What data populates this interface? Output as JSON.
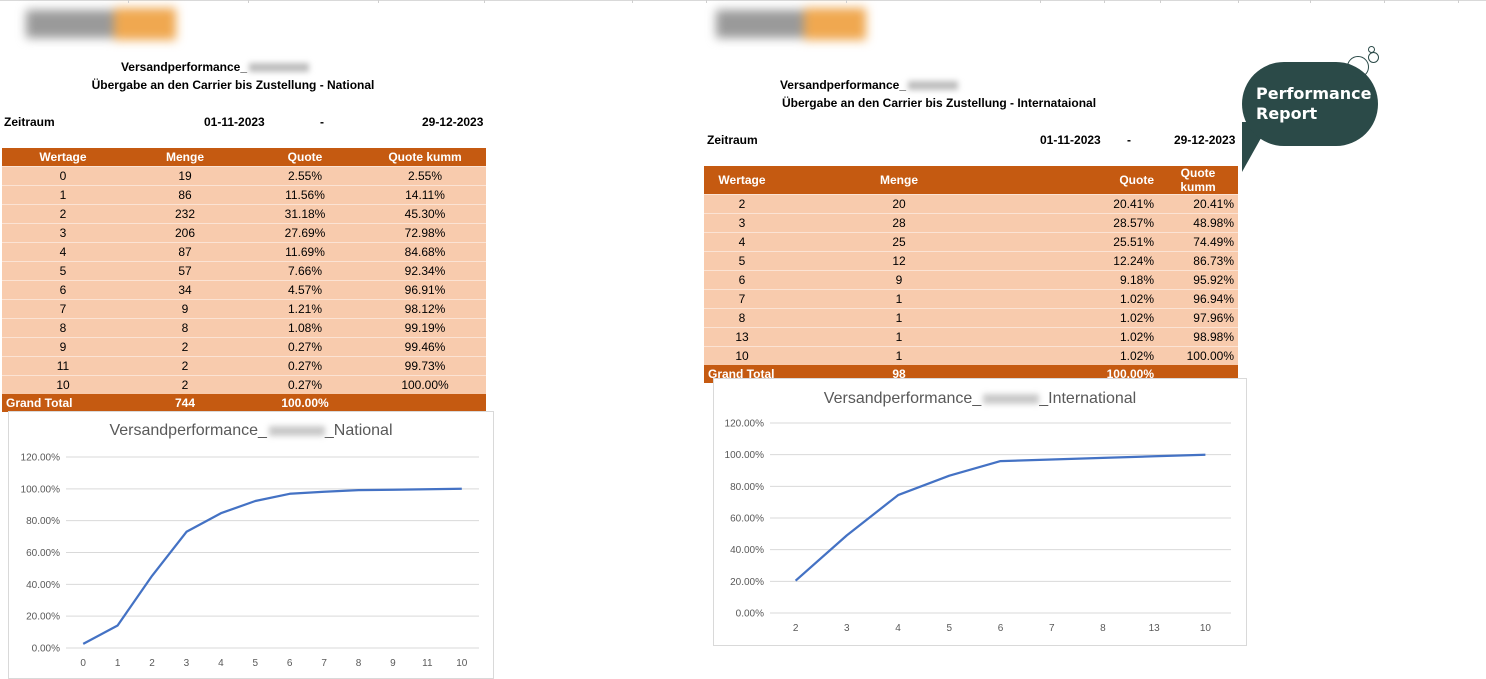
{
  "national": {
    "title": "Versandperformance_",
    "subtitle": "Übergabe an den Carrier bis Zustellung - National",
    "period_label": "Zeitraum",
    "period_from": "01-11-2023",
    "period_sep": "-",
    "period_to": "29-12-2023",
    "headers": [
      "Wertage",
      "Menge",
      "Quote",
      "Quote kumm"
    ],
    "rows": [
      [
        "0",
        "19",
        "2.55%",
        "2.55%"
      ],
      [
        "1",
        "86",
        "11.56%",
        "14.11%"
      ],
      [
        "2",
        "232",
        "31.18%",
        "45.30%"
      ],
      [
        "3",
        "206",
        "27.69%",
        "72.98%"
      ],
      [
        "4",
        "87",
        "11.69%",
        "84.68%"
      ],
      [
        "5",
        "57",
        "7.66%",
        "92.34%"
      ],
      [
        "6",
        "34",
        "4.57%",
        "96.91%"
      ],
      [
        "7",
        "9",
        "1.21%",
        "98.12%"
      ],
      [
        "8",
        "8",
        "1.08%",
        "99.19%"
      ],
      [
        "9",
        "2",
        "0.27%",
        "99.46%"
      ],
      [
        "11",
        "2",
        "0.27%",
        "99.73%"
      ],
      [
        "10",
        "2",
        "0.27%",
        "100.00%"
      ]
    ],
    "total": [
      "Grand Total",
      "744",
      "100.00%",
      ""
    ],
    "chart_title_prefix": "Versandperformance_",
    "chart_title_suffix": "_National"
  },
  "international": {
    "title": "Versandperformance_",
    "subtitle": "Übergabe an den Carrier bis Zustellung - Internataional",
    "period_label": "Zeitraum",
    "period_from": "01-11-2023",
    "period_sep": "-",
    "period_to": "29-12-2023",
    "headers": [
      "Wertage",
      "Menge",
      "Quote",
      "Quote kumm"
    ],
    "rows": [
      [
        "2",
        "20",
        "20.41%",
        "20.41%"
      ],
      [
        "3",
        "28",
        "28.57%",
        "48.98%"
      ],
      [
        "4",
        "25",
        "25.51%",
        "74.49%"
      ],
      [
        "5",
        "12",
        "12.24%",
        "86.73%"
      ],
      [
        "6",
        "9",
        "9.18%",
        "95.92%"
      ],
      [
        "7",
        "1",
        "1.02%",
        "96.94%"
      ],
      [
        "8",
        "1",
        "1.02%",
        "97.96%"
      ],
      [
        "13",
        "1",
        "1.02%",
        "98.98%"
      ],
      [
        "10",
        "1",
        "1.02%",
        "100.00%"
      ]
    ],
    "total": [
      "Grand Total",
      "98",
      "100.00%",
      ""
    ],
    "chart_title_prefix": "Versandperformance_",
    "chart_title_suffix": "_International"
  },
  "badge": {
    "line1": "Performance",
    "line2": "Report"
  },
  "colors": {
    "header": "#c55a11",
    "row": "#f8cbad",
    "line": "#4472c4",
    "badge": "#2b4a48"
  },
  "chart_data": [
    {
      "type": "line",
      "x": [
        "0",
        "1",
        "2",
        "3",
        "4",
        "5",
        "6",
        "7",
        "8",
        "9",
        "11",
        "10"
      ],
      "series": [
        {
          "values": [
            2.55,
            14.11,
            45.3,
            72.98,
            84.68,
            92.34,
            96.91,
            98.12,
            99.19,
            99.46,
            99.73,
            100.0
          ]
        }
      ],
      "yticks": [
        "0.00%",
        "20.00%",
        "40.00%",
        "60.00%",
        "80.00%",
        "100.00%",
        "120.00%"
      ],
      "ylim": [
        0,
        120
      ],
      "grid": true
    },
    {
      "type": "line",
      "x": [
        "2",
        "3",
        "4",
        "5",
        "6",
        "7",
        "8",
        "13",
        "10"
      ],
      "series": [
        {
          "values": [
            20.41,
            48.98,
            74.49,
            86.73,
            95.92,
            96.94,
            97.96,
            98.98,
            100.0
          ]
        }
      ],
      "yticks": [
        "0.00%",
        "20.00%",
        "40.00%",
        "60.00%",
        "80.00%",
        "100.00%",
        "120.00%"
      ],
      "ylim": [
        0,
        120
      ],
      "grid": true
    }
  ]
}
